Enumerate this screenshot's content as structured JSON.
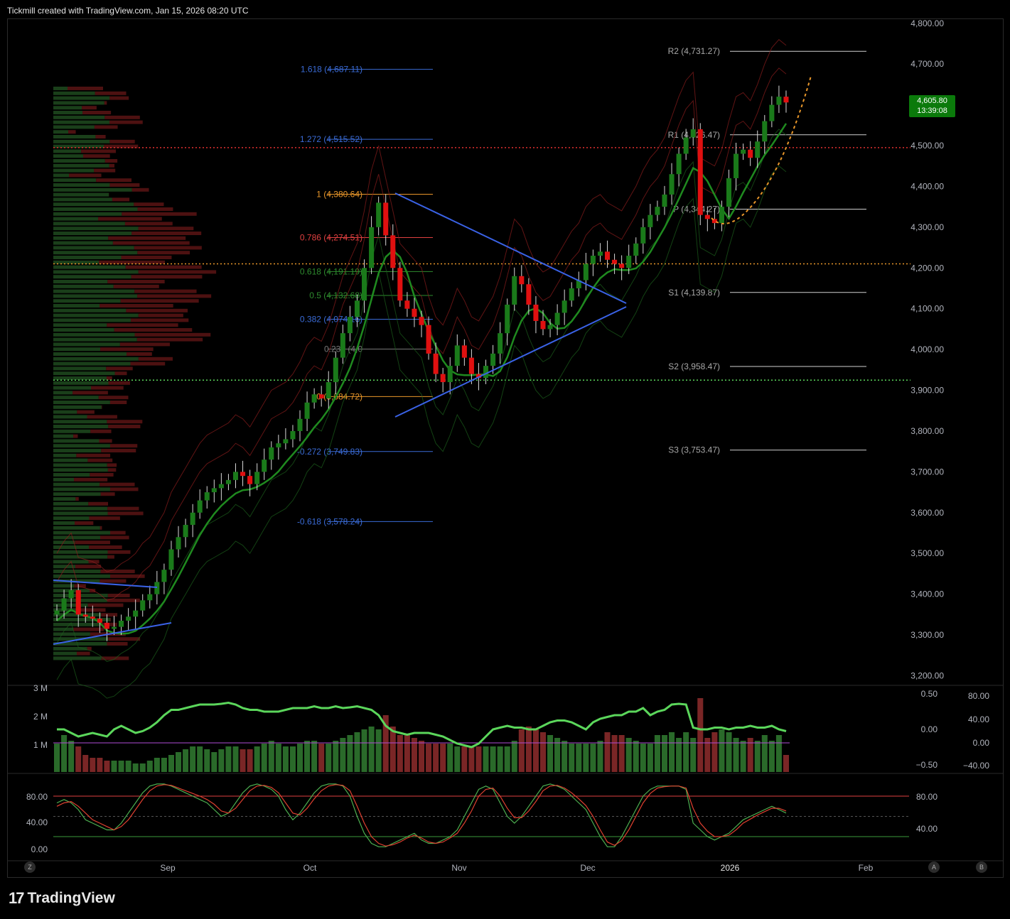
{
  "header": {
    "text": "Tickmill created with TradingView.com, Jan 15, 2026 08:20 UTC"
  },
  "footer": {
    "logo_text": "TradingView"
  },
  "price_tag": {
    "price": "4,605.80",
    "countdown": "13:39:08"
  },
  "buttons": {
    "left": "Z",
    "right_a": "A",
    "right_b": "B"
  },
  "colors": {
    "up": "#1a7a1a",
    "down": "#e01010",
    "fib_blue": "#3a6bd6",
    "fib_orange": "#e8962a",
    "background": "#000000"
  },
  "chart_data": [
    {
      "type": "candlestick",
      "title": "",
      "y_axis_ticks": [
        "4,800.00",
        "4,700.00",
        "4,600.00",
        "4,500.00",
        "4,400.00",
        "4,300.00",
        "4,200.00",
        "4,100.00",
        "4,000.00",
        "3,900.00",
        "3,800.00",
        "3,700.00",
        "3,600.00",
        "3,500.00",
        "3,400.00",
        "3,300.00",
        "3,200.00"
      ],
      "ylim": [
        3180,
        4810
      ],
      "x_axis_ticks": [
        "Sep",
        "Oct",
        "Nov",
        "Dec",
        "2026",
        "Feb"
      ],
      "last_price": 4605.8,
      "closes": [
        3360,
        3390,
        3410,
        3350,
        3345,
        3340,
        3330,
        3315,
        3320,
        3335,
        3345,
        3360,
        3385,
        3400,
        3430,
        3460,
        3510,
        3540,
        3570,
        3600,
        3630,
        3650,
        3660,
        3670,
        3680,
        3700,
        3690,
        3670,
        3700,
        3730,
        3760,
        3770,
        3780,
        3800,
        3830,
        3870,
        3890,
        3880,
        3920,
        3980,
        4040,
        4080,
        4120,
        4200,
        4300,
        4360,
        4280,
        4200,
        4120,
        4100,
        4080,
        4060,
        3990,
        3940,
        3920,
        3960,
        4010,
        3980,
        3940,
        3930,
        3960,
        3990,
        4040,
        4110,
        4180,
        4160,
        4110,
        4070,
        4050,
        4060,
        4090,
        4120,
        4150,
        4170,
        4210,
        4230,
        4240,
        4220,
        4210,
        4200,
        4230,
        4260,
        4300,
        4330,
        4350,
        4380,
        4430,
        4480,
        4520,
        4540,
        4330,
        4320,
        4310,
        4350,
        4420,
        4480,
        4490,
        4470,
        4510,
        4560,
        4600,
        4620,
        4605.8
      ],
      "fibonacci": [
        {
          "label": "1.618 (4,687.11)",
          "value": 4687.11,
          "color": "#3a6bd6"
        },
        {
          "label": "1.272 (4,515.52)",
          "value": 4515.52,
          "color": "#3a6bd6"
        },
        {
          "label": "1 (4,380.64)",
          "value": 4380.64,
          "color": "#e8962a"
        },
        {
          "label": "0.786 (4,274.51)",
          "value": 4274.51,
          "color": "#e04040"
        },
        {
          "label": "0.618 (4,191.19)",
          "value": 4191.19,
          "color": "#2e8b2e"
        },
        {
          "label": "0.5 (4,132.68)",
          "value": 4132.68,
          "color": "#2e8b2e"
        },
        {
          "label": "0.382 (4,074.16)",
          "value": 4074.16,
          "color": "#3a6bd6"
        },
        {
          "label": "0.236 (4,0",
          "value": 4001.0,
          "color": "#777777"
        },
        {
          "label": "0 (3,884.72)",
          "value": 3884.72,
          "color": "#e8962a"
        },
        {
          "label": "-0.272 (3,749.83)",
          "value": 3749.83,
          "color": "#3a6bd6"
        },
        {
          "label": "-0.618 (3,578.24)",
          "value": 3578.24,
          "color": "#3a6bd6"
        }
      ],
      "pivots": [
        {
          "label": "R2 (4,731.27)",
          "value": 4731.27
        },
        {
          "label": "R1 (4,526.47)",
          "value": 4526.47
        },
        {
          "label": "P (4,344.27)",
          "value": 4344.27
        },
        {
          "label": "S1 (4,139.87)",
          "value": 4139.87
        },
        {
          "label": "S2 (3,958.47)",
          "value": 3958.47
        },
        {
          "label": "S3 (3,753.47)",
          "value": 3753.47
        }
      ],
      "horizontal_levels": [
        {
          "value": 4495,
          "color": "#e03030"
        },
        {
          "value": 4210,
          "color": "#e8962a"
        },
        {
          "value": 3925,
          "color": "#5bd65b"
        }
      ]
    },
    {
      "type": "bar",
      "title": "",
      "left_axis_ticks": [
        "3 M",
        "2 M",
        "1 M"
      ],
      "mid_axis_ticks": [
        "0.50",
        "0.00",
        "−0.50"
      ],
      "right_axis_ticks": [
        "80.00",
        "40.00",
        "0.00",
        "−40.00"
      ],
      "volume_millions": [
        1.0,
        1.3,
        1.1,
        0.9,
        0.6,
        0.5,
        0.5,
        0.4,
        0.4,
        0.4,
        0.4,
        0.3,
        0.3,
        0.4,
        0.5,
        0.5,
        0.6,
        0.7,
        0.8,
        0.9,
        0.9,
        0.8,
        0.7,
        0.8,
        0.9,
        0.9,
        0.8,
        0.8,
        0.9,
        1.0,
        1.1,
        1.0,
        0.9,
        0.9,
        1.0,
        1.1,
        1.1,
        1.0,
        1.0,
        1.1,
        1.2,
        1.3,
        1.4,
        1.5,
        1.6,
        1.5,
        2.0,
        1.6,
        1.3,
        1.3,
        1.2,
        1.1,
        1.0,
        1.0,
        1.0,
        1.0,
        0.9,
        0.9,
        0.9,
        0.9,
        0.9,
        0.9,
        0.9,
        0.9,
        1.1,
        1.5,
        1.6,
        1.5,
        1.4,
        1.3,
        1.2,
        1.1,
        1.0,
        1.0,
        1.0,
        1.0,
        1.1,
        1.4,
        1.3,
        1.3,
        1.2,
        1.1,
        1.0,
        1.0,
        1.3,
        1.3,
        1.4,
        1.2,
        1.4,
        1.2,
        2.6,
        1.2,
        1.4,
        1.5,
        1.4,
        1.2,
        1.1,
        1.2,
        1.1,
        1.3,
        1.1,
        1.3,
        0.6
      ],
      "oscillator": [
        0.0,
        0.0,
        -0.1,
        -0.2,
        -0.15,
        -0.1,
        -0.15,
        -0.2,
        0.0,
        0.1,
        0.0,
        -0.1,
        -0.05,
        0.05,
        0.2,
        0.4,
        0.55,
        0.55,
        0.6,
        0.65,
        0.7,
        0.7,
        0.7,
        0.72,
        0.75,
        0.7,
        0.6,
        0.55,
        0.55,
        0.5,
        0.5,
        0.5,
        0.55,
        0.6,
        0.6,
        0.6,
        0.65,
        0.6,
        0.6,
        0.65,
        0.6,
        0.62,
        0.65,
        0.6,
        0.55,
        0.4,
        0.1,
        -0.05,
        -0.1,
        -0.15,
        -0.1,
        -0.1,
        -0.1,
        -0.15,
        -0.2,
        -0.3,
        -0.4,
        -0.45,
        -0.5,
        -0.4,
        -0.2,
        0.0,
        0.05,
        0.1,
        0.05,
        0.05,
        0.0,
        0.0,
        0.1,
        0.2,
        0.25,
        0.25,
        0.2,
        0.1,
        0.0,
        0.2,
        0.3,
        0.35,
        0.4,
        0.4,
        0.5,
        0.5,
        0.6,
        0.4,
        0.5,
        0.55,
        0.7,
        0.72,
        0.7,
        0.05,
        0.0,
        0.0,
        0.05,
        0.05,
        0.0,
        0.05,
        0.05,
        0.1,
        0.05,
        0.05,
        0.1,
        0.0,
        -0.05
      ]
    },
    {
      "type": "line",
      "title": "",
      "left_axis_ticks": [
        "80.00",
        "40.00",
        "0.00"
      ],
      "right_axis_ticks": [
        "80.00",
        "40.00"
      ],
      "stoch_k": [
        70,
        75,
        70,
        60,
        45,
        40,
        35,
        30,
        30,
        40,
        55,
        70,
        85,
        95,
        98,
        98,
        95,
        90,
        85,
        80,
        75,
        70,
        60,
        50,
        55,
        70,
        85,
        95,
        98,
        95,
        90,
        80,
        60,
        45,
        55,
        70,
        85,
        95,
        98,
        98,
        95,
        80,
        50,
        25,
        10,
        5,
        5,
        10,
        15,
        20,
        25,
        15,
        10,
        10,
        15,
        20,
        30,
        50,
        70,
        90,
        95,
        90,
        70,
        50,
        40,
        50,
        65,
        80,
        95,
        98,
        95,
        90,
        80,
        70,
        60,
        40,
        20,
        5,
        5,
        20,
        40,
        60,
        80,
        90,
        95,
        95,
        95,
        95,
        90,
        40,
        30,
        20,
        15,
        20,
        25,
        35,
        45,
        50,
        55,
        60,
        65,
        60,
        55
      ],
      "stoch_d": [
        65,
        70,
        72,
        65,
        55,
        45,
        40,
        35,
        30,
        35,
        45,
        60,
        75,
        88,
        95,
        97,
        96,
        92,
        88,
        84,
        80,
        75,
        68,
        58,
        55,
        62,
        75,
        88,
        95,
        96,
        93,
        85,
        70,
        55,
        52,
        62,
        76,
        88,
        95,
        97,
        96,
        88,
        65,
        40,
        20,
        10,
        6,
        8,
        12,
        18,
        22,
        18,
        12,
        10,
        12,
        18,
        25,
        40,
        58,
        80,
        90,
        92,
        80,
        62,
        48,
        48,
        58,
        72,
        88,
        95,
        96,
        92,
        85,
        76,
        66,
        50,
        30,
        12,
        7,
        14,
        30,
        50,
        70,
        84,
        92,
        94,
        95,
        95,
        92,
        62,
        40,
        28,
        20,
        20,
        22,
        30,
        40,
        46,
        52,
        57,
        62,
        62,
        58
      ]
    }
  ]
}
